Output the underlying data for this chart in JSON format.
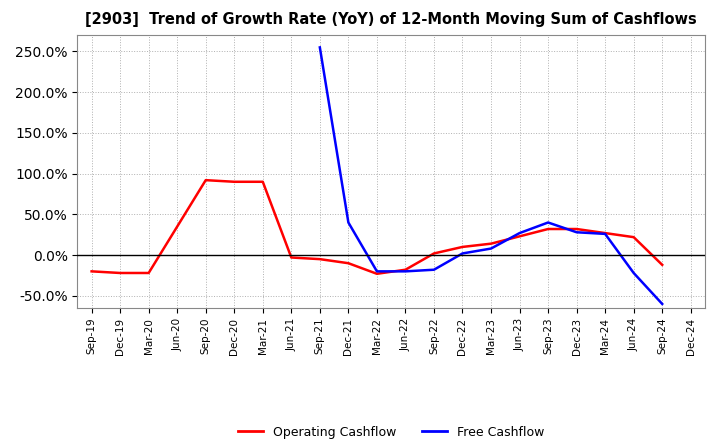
{
  "title": "[2903]  Trend of Growth Rate (YoY) of 12-Month Moving Sum of Cashflows",
  "x_labels": [
    "Sep-19",
    "Dec-19",
    "Mar-20",
    "Jun-20",
    "Sep-20",
    "Dec-20",
    "Mar-21",
    "Jun-21",
    "Sep-21",
    "Dec-21",
    "Mar-22",
    "Jun-22",
    "Sep-22",
    "Dec-22",
    "Mar-23",
    "Jun-23",
    "Sep-23",
    "Dec-23",
    "Mar-24",
    "Jun-24",
    "Sep-24",
    "Dec-24"
  ],
  "operating_cashflow": [
    -0.2,
    -0.22,
    -0.22,
    0.35,
    0.92,
    0.9,
    0.9,
    -0.03,
    -0.05,
    -0.1,
    -0.23,
    -0.18,
    0.02,
    0.1,
    0.14,
    0.23,
    0.32,
    0.32,
    0.27,
    0.22,
    -0.12,
    null
  ],
  "free_cashflow": [
    null,
    null,
    null,
    null,
    null,
    null,
    null,
    null,
    2.55,
    0.4,
    -0.2,
    -0.2,
    -0.18,
    0.02,
    0.08,
    0.27,
    0.4,
    0.28,
    0.26,
    -0.22,
    -0.6,
    null
  ],
  "ylim_min": -0.65,
  "ylim_max": 2.7,
  "ytick_step": 0.5,
  "operating_color": "#ff0000",
  "free_color": "#0000ff",
  "bg_color": "#ffffff",
  "grid_color": "#b0b0b0",
  "legend_labels": [
    "Operating Cashflow",
    "Free Cashflow"
  ]
}
